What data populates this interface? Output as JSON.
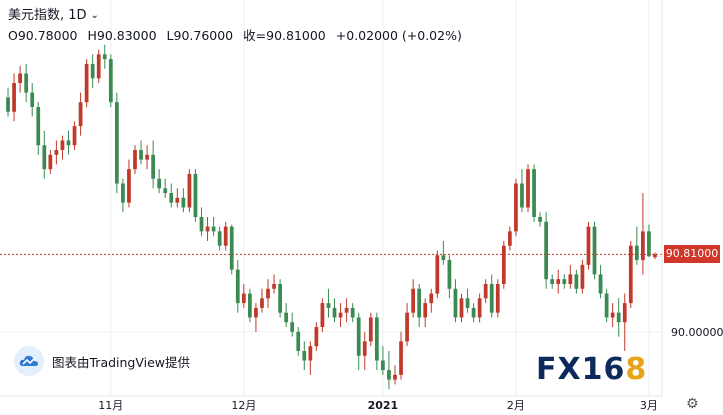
{
  "header": {
    "symbol": "美元指数, 1D",
    "open": "O90.78000",
    "high": "H90.83000",
    "low": "L90.76000",
    "close": "收=90.81000",
    "change": "+0.02000 (+0.02%)"
  },
  "watermark": {
    "provider_text": "图表由TradingView提供",
    "brand_fx": "FX16",
    "brand_eight": "8"
  },
  "last_price_label": "90.81000",
  "colors": {
    "up": "#c0392b",
    "down": "#3a8a52",
    "price_line": "#c0392b",
    "grid": "#eef0f3",
    "axis_text": "#131722"
  },
  "icons": [
    "chevron-down-icon",
    "tradingview-cloud-icon",
    "settings-gear-icon"
  ],
  "chart_data": {
    "type": "candlestick",
    "title": "美元指数, 1D",
    "y_ticks": [
      {
        "value": 90.0,
        "label": "90.00000"
      }
    ],
    "x_ticks": [
      {
        "index": 17,
        "label": "11月"
      },
      {
        "index": 39,
        "label": "12月"
      },
      {
        "index": 62,
        "label": "2021"
      },
      {
        "index": 84,
        "label": "2月"
      },
      {
        "index": 106,
        "label": "3月"
      }
    ],
    "ylim": [
      89.35,
      93.05
    ],
    "last_price": 90.81,
    "candles": [
      [
        92.45,
        92.55,
        92.25,
        92.3
      ],
      [
        92.3,
        92.7,
        92.2,
        92.6
      ],
      [
        92.6,
        92.78,
        92.5,
        92.7
      ],
      [
        92.7,
        92.8,
        92.4,
        92.5
      ],
      [
        92.5,
        92.6,
        92.25,
        92.35
      ],
      [
        92.35,
        92.4,
        91.85,
        91.95
      ],
      [
        91.95,
        92.1,
        91.6,
        91.7
      ],
      [
        91.7,
        91.9,
        91.65,
        91.85
      ],
      [
        91.85,
        92.0,
        91.75,
        91.9
      ],
      [
        91.9,
        92.05,
        91.8,
        92.0
      ],
      [
        92.0,
        92.1,
        91.85,
        91.95
      ],
      [
        91.95,
        92.2,
        91.9,
        92.15
      ],
      [
        92.15,
        92.5,
        92.05,
        92.4
      ],
      [
        92.4,
        92.85,
        92.35,
        92.8
      ],
      [
        92.8,
        92.9,
        92.55,
        92.65
      ],
      [
        92.65,
        92.95,
        92.6,
        92.9
      ],
      [
        92.9,
        93.0,
        92.75,
        92.85
      ],
      [
        92.85,
        92.9,
        92.35,
        92.4
      ],
      [
        92.4,
        92.5,
        91.45,
        91.55
      ],
      [
        91.55,
        91.6,
        91.25,
        91.35
      ],
      [
        91.35,
        91.8,
        91.3,
        91.7
      ],
      [
        91.7,
        91.95,
        91.65,
        91.9
      ],
      [
        91.9,
        92.0,
        91.75,
        91.8
      ],
      [
        91.8,
        91.95,
        91.7,
        91.85
      ],
      [
        91.85,
        92.0,
        91.5,
        91.6
      ],
      [
        91.6,
        91.7,
        91.45,
        91.5
      ],
      [
        91.5,
        91.6,
        91.4,
        91.45
      ],
      [
        91.45,
        91.55,
        91.3,
        91.35
      ],
      [
        91.35,
        91.5,
        91.3,
        91.4
      ],
      [
        91.4,
        91.5,
        91.25,
        91.3
      ],
      [
        91.3,
        91.7,
        91.25,
        91.65
      ],
      [
        91.65,
        91.7,
        91.15,
        91.2
      ],
      [
        91.2,
        91.3,
        91.0,
        91.05
      ],
      [
        91.05,
        91.2,
        90.95,
        91.1
      ],
      [
        91.1,
        91.2,
        91.0,
        91.05
      ],
      [
        91.05,
        91.1,
        90.85,
        90.9
      ],
      [
        90.9,
        91.15,
        90.85,
        91.1
      ],
      [
        91.1,
        91.12,
        90.6,
        90.65
      ],
      [
        90.65,
        90.75,
        90.2,
        90.3
      ],
      [
        90.3,
        90.5,
        90.25,
        90.4
      ],
      [
        90.4,
        90.45,
        90.1,
        90.15
      ],
      [
        90.15,
        90.3,
        90.0,
        90.25
      ],
      [
        90.25,
        90.45,
        90.2,
        90.35
      ],
      [
        90.35,
        90.55,
        90.25,
        90.45
      ],
      [
        90.45,
        90.6,
        90.4,
        90.5
      ],
      [
        90.5,
        90.55,
        90.15,
        90.2
      ],
      [
        90.2,
        90.3,
        90.05,
        90.1
      ],
      [
        90.1,
        90.2,
        89.95,
        90.0
      ],
      [
        90.0,
        90.05,
        89.75,
        89.8
      ],
      [
        89.8,
        89.9,
        89.6,
        89.7
      ],
      [
        89.7,
        89.9,
        89.55,
        89.85
      ],
      [
        89.85,
        90.1,
        89.8,
        90.05
      ],
      [
        90.05,
        90.35,
        90.0,
        90.3
      ],
      [
        90.3,
        90.45,
        90.15,
        90.25
      ],
      [
        90.25,
        90.35,
        90.1,
        90.15
      ],
      [
        90.15,
        90.3,
        90.05,
        90.2
      ],
      [
        90.2,
        90.35,
        90.1,
        90.25
      ],
      [
        90.25,
        90.3,
        90.1,
        90.15
      ],
      [
        90.15,
        90.2,
        89.6,
        89.75
      ],
      [
        89.75,
        90.0,
        89.6,
        89.9
      ],
      [
        89.9,
        90.2,
        89.85,
        90.15
      ],
      [
        90.15,
        90.2,
        89.6,
        89.7
      ],
      [
        89.7,
        89.85,
        89.55,
        89.6
      ],
      [
        89.6,
        89.8,
        89.4,
        89.5
      ],
      [
        89.5,
        89.65,
        89.45,
        89.55
      ],
      [
        89.55,
        90.0,
        89.5,
        89.9
      ],
      [
        89.9,
        90.3,
        89.85,
        90.2
      ],
      [
        90.2,
        90.55,
        90.15,
        90.45
      ],
      [
        90.45,
        90.5,
        90.05,
        90.15
      ],
      [
        90.15,
        90.35,
        90.05,
        90.3
      ],
      [
        90.3,
        90.45,
        90.2,
        90.4
      ],
      [
        90.4,
        90.85,
        90.35,
        90.8
      ],
      [
        90.8,
        90.95,
        90.7,
        90.75
      ],
      [
        90.75,
        90.8,
        90.35,
        90.45
      ],
      [
        90.45,
        90.55,
        90.1,
        90.15
      ],
      [
        90.15,
        90.4,
        90.1,
        90.35
      ],
      [
        90.35,
        90.45,
        90.2,
        90.25
      ],
      [
        90.25,
        90.3,
        90.1,
        90.15
      ],
      [
        90.15,
        90.4,
        90.1,
        90.35
      ],
      [
        90.35,
        90.55,
        90.3,
        90.5
      ],
      [
        90.5,
        90.6,
        90.15,
        90.2
      ],
      [
        90.2,
        90.55,
        90.15,
        90.5
      ],
      [
        90.5,
        90.95,
        90.45,
        90.9
      ],
      [
        90.9,
        91.1,
        90.85,
        91.05
      ],
      [
        91.05,
        91.6,
        91.0,
        91.55
      ],
      [
        91.55,
        91.7,
        91.25,
        91.3
      ],
      [
        91.3,
        91.75,
        91.25,
        91.7
      ],
      [
        91.7,
        91.75,
        91.15,
        91.2
      ],
      [
        91.2,
        91.25,
        91.1,
        91.15
      ],
      [
        91.15,
        91.25,
        90.45,
        90.55
      ],
      [
        90.55,
        90.6,
        90.45,
        90.5
      ],
      [
        90.5,
        90.65,
        90.4,
        90.55
      ],
      [
        90.55,
        90.6,
        90.45,
        90.5
      ],
      [
        90.5,
        90.7,
        90.45,
        90.6
      ],
      [
        90.6,
        90.65,
        90.4,
        90.45
      ],
      [
        90.45,
        90.75,
        90.4,
        90.7
      ],
      [
        90.7,
        91.15,
        90.65,
        91.1
      ],
      [
        91.1,
        91.15,
        90.55,
        90.6
      ],
      [
        90.6,
        90.7,
        90.35,
        90.4
      ],
      [
        90.4,
        90.45,
        90.1,
        90.15
      ],
      [
        90.15,
        90.3,
        90.05,
        90.2
      ],
      [
        90.2,
        90.35,
        89.95,
        90.1
      ],
      [
        90.1,
        90.4,
        89.8,
        90.3
      ],
      [
        90.3,
        90.95,
        90.25,
        90.9
      ],
      [
        90.9,
        91.1,
        90.7,
        90.75
      ],
      [
        90.75,
        91.45,
        90.6,
        91.05
      ],
      [
        91.05,
        91.12,
        90.78,
        90.79
      ],
      [
        90.78,
        90.83,
        90.76,
        90.81
      ]
    ]
  }
}
